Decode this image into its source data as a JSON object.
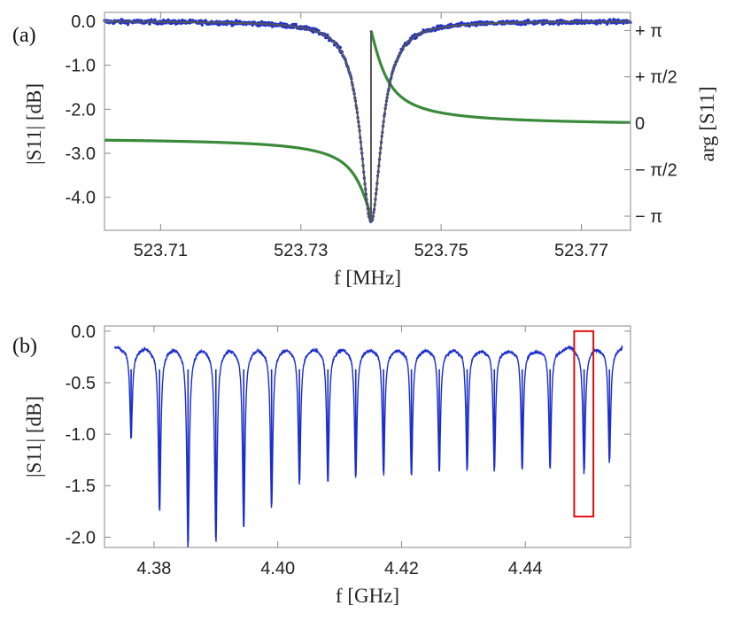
{
  "panel_a": {
    "label": "(a)",
    "xlabel": "f [MHz]",
    "ylabel": "|S11| [dB]",
    "y2label": "arg [S11]"
  },
  "panel_b": {
    "label": "(b)",
    "xlabel": "f [GHz]",
    "ylabel": "|S11| [dB]"
  },
  "colors": {
    "data_points": "#2233cc",
    "fit_magnitude": "#555555",
    "phase": "#3a8a3a",
    "spectrum": "#1a2ccc",
    "highlight_box": "#e01010"
  },
  "chart_data": [
    {
      "type": "scatter",
      "xlabel": "f [MHz]",
      "ylabel": "|S11| [dB]",
      "y2label": "arg [S11]",
      "xlim": [
        523.702,
        523.777
      ],
      "ylim": [
        -4.75,
        0.2
      ],
      "y2lim": [
        -3.62,
        3.75
      ],
      "xticks": [
        523.71,
        523.73,
        523.75,
        523.77
      ],
      "xtick_labels": [
        "523.71",
        "523.73",
        "523.75",
        "523.77"
      ],
      "yticks": [
        0.0,
        -1.0,
        -2.0,
        -3.0,
        -4.0
      ],
      "ytick_labels": [
        "0.0",
        "-1.0",
        "-2.0",
        "-3.0",
        "-4.0"
      ],
      "y2ticks": [
        3.14159,
        1.5708,
        0,
        -1.5708,
        -3.14159
      ],
      "y2tick_labels": [
        "+ π",
        "+ π/2",
        "0",
        "− π/2",
        "− π"
      ],
      "resonance": {
        "f0": 523.74,
        "depth_db": -4.55,
        "half_width": 0.0018
      },
      "series": [
        {
          "name": "",
          "kind": "magnitude measured",
          "color": "data_points",
          "axis": "left"
        },
        {
          "name": "",
          "kind": "magnitude fit",
          "color": "fit_magnitude",
          "axis": "left"
        },
        {
          "name": "",
          "kind": "phase",
          "color": "phase",
          "axis": "right",
          "ends": [
            -0.47,
            -0.1
          ]
        }
      ]
    },
    {
      "type": "line",
      "xlabel": "f [GHz]",
      "ylabel": "|S11| [dB]",
      "xlim": [
        4.372,
        4.457
      ],
      "ylim": [
        -2.1,
        0.05
      ],
      "xticks": [
        4.38,
        4.4,
        4.42,
        4.44
      ],
      "xtick_labels": [
        "4.38",
        "4.40",
        "4.42",
        "4.44"
      ],
      "yticks": [
        0.0,
        -0.5,
        -1.0,
        -1.5,
        -2.0
      ],
      "ytick_labels": [
        "0.0",
        "-0.5",
        "-1.0",
        "-1.5",
        "-2.0"
      ],
      "baseline_db": -0.12,
      "resonances": [
        {
          "f": 4.3763,
          "depth": -1.0
        },
        {
          "f": 4.3809,
          "depth": -1.71
        },
        {
          "f": 4.3855,
          "depth": -2.05
        },
        {
          "f": 4.39,
          "depth": -2.0
        },
        {
          "f": 4.3945,
          "depth": -1.88
        },
        {
          "f": 4.399,
          "depth": -1.68
        },
        {
          "f": 4.4035,
          "depth": -1.45
        },
        {
          "f": 4.4081,
          "depth": -1.43
        },
        {
          "f": 4.4126,
          "depth": -1.39
        },
        {
          "f": 4.4171,
          "depth": -1.36
        },
        {
          "f": 4.4216,
          "depth": -1.37
        },
        {
          "f": 4.4261,
          "depth": -1.35
        },
        {
          "f": 4.4306,
          "depth": -1.33
        },
        {
          "f": 4.435,
          "depth": -1.33
        },
        {
          "f": 4.4395,
          "depth": -1.33
        },
        {
          "f": 4.444,
          "depth": -1.32
        },
        {
          "f": 4.4495,
          "depth": -1.33
        },
        {
          "f": 4.4536,
          "depth": -1.24
        }
      ],
      "highlight_box": {
        "x": [
          4.4479,
          4.451
        ],
        "y": [
          -1.8,
          0.0
        ]
      }
    }
  ]
}
